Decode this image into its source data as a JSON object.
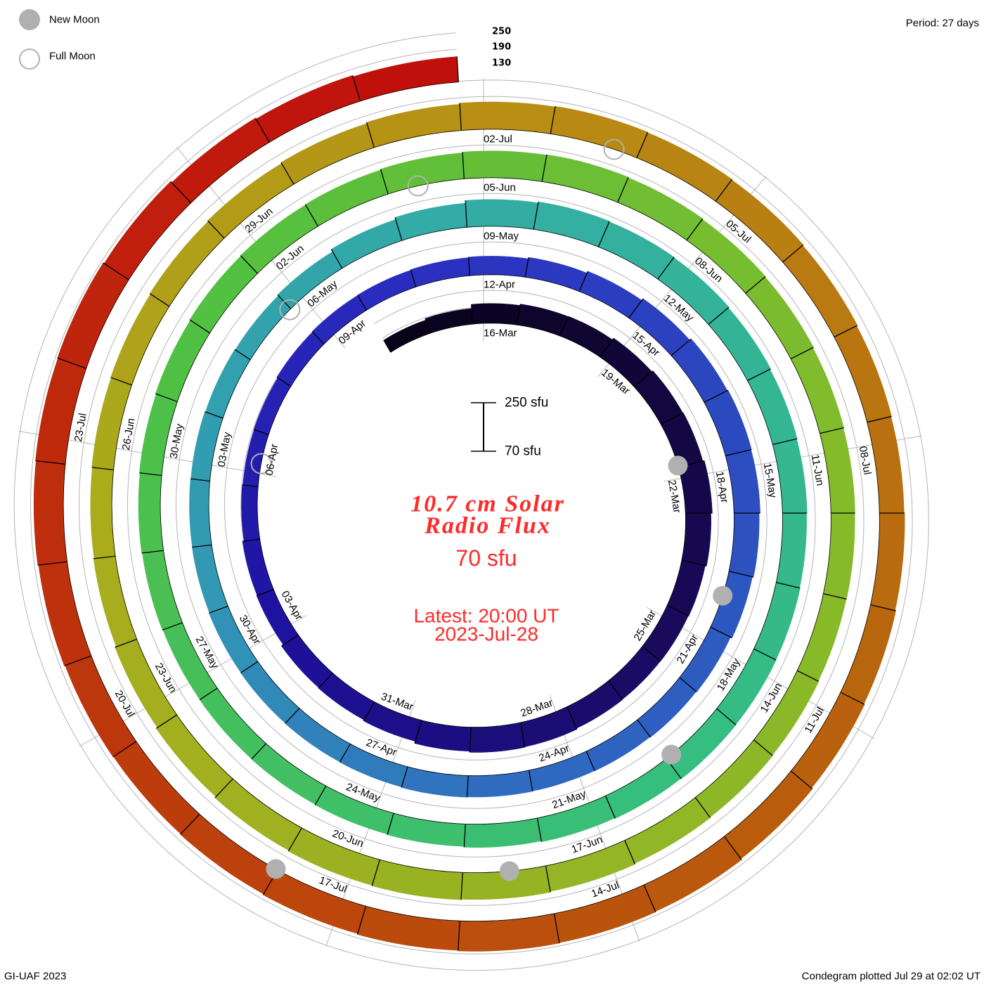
{
  "legend": {
    "new_moon": "New Moon",
    "full_moon": "Full Moon",
    "moon_color": "#b0b0b0"
  },
  "period_label": "Period: 27 days",
  "level_labels": [
    "250",
    "190",
    "130"
  ],
  "scale_bar": {
    "top": "250 sfu",
    "bottom": "70 sfu"
  },
  "title_line1": "10.7 cm Solar",
  "title_line2": "Radio Flux",
  "base_label": "70 sfu",
  "latest_line1": "Latest: 20:00 UT",
  "latest_line2": "2023-Jul-28",
  "footer_left": "GI-UAF 2023",
  "footer_right": "Condegram plotted Jul 29 at 02:02 UT",
  "chart_data": {
    "type": "condegram",
    "title": "10.7 cm Solar Radio Flux",
    "period_days": 27,
    "base_sfu": 70,
    "scale_top_sfu": 250,
    "levels_sfu": [
      130,
      190,
      250
    ],
    "first_day": "2023-03-14",
    "last_day": "2023-07-28",
    "units": "sfu",
    "daily_flux": [
      121,
      127,
      142,
      147,
      148,
      155,
      160,
      162,
      168,
      163,
      158,
      156,
      155,
      156,
      160,
      162,
      158,
      150,
      146,
      144,
      136,
      134,
      128,
      126,
      127,
      131,
      133,
      134,
      136,
      138,
      143,
      150,
      158,
      165,
      168,
      166,
      162,
      158,
      152,
      150,
      148,
      147,
      148,
      149,
      147,
      146,
      145,
      144,
      142,
      141,
      140,
      138,
      136,
      140,
      150,
      158,
      168,
      172,
      170,
      168,
      165,
      162,
      160,
      158,
      160,
      161,
      162,
      160,
      158,
      155,
      152,
      150,
      148,
      147,
      146,
      148,
      150,
      152,
      155,
      158,
      160,
      162,
      165,
      168,
      170,
      168,
      165,
      163,
      160,
      158,
      157,
      156,
      158,
      160,
      162,
      165,
      168,
      170,
      168,
      165,
      160,
      155,
      150,
      148,
      150,
      152,
      155,
      158,
      162,
      166,
      170,
      172,
      170,
      168,
      165,
      162,
      160,
      162,
      165,
      168,
      172,
      176,
      178,
      180,
      178,
      175,
      172,
      170,
      172,
      175,
      178,
      180,
      182,
      178,
      172,
      168,
      163
    ],
    "date_labels": [
      "16-Mar",
      "19-Mar",
      "22-Mar",
      "25-Mar",
      "28-Mar",
      "31-Mar",
      "03-Apr",
      "06-Apr",
      "09-Apr",
      "12-Apr",
      "15-Apr",
      "18-Apr",
      "21-Apr",
      "24-Apr",
      "27-Apr",
      "30-Apr",
      "03-May",
      "06-May",
      "09-May",
      "12-May",
      "15-May",
      "18-May",
      "21-May",
      "24-May",
      "27-May",
      "30-May",
      "02-Jun",
      "05-Jun",
      "08-Jun",
      "11-Jun",
      "14-Jun",
      "17-Jun",
      "20-Jun",
      "23-Jun",
      "26-Jun",
      "29-Jun",
      "02-Jul",
      "05-Jul",
      "08-Jul",
      "11-Jul",
      "14-Jul",
      "17-Jul",
      "20-Jul",
      "23-Jul"
    ],
    "new_moons_days_after_16mar": [
      5.72,
      35.18,
      64.66,
      94.19,
      123.77
    ],
    "full_moons_days_after_16mar": [
      21.19,
      50.73,
      80.15,
      109.48
    ],
    "color_stops": [
      {
        "day": 0,
        "color": "#08031a"
      },
      {
        "day": 11,
        "color": "#1a0a5c"
      },
      {
        "day": 20,
        "color": "#1e12a0"
      },
      {
        "day": 27,
        "color": "#2a2cc0"
      },
      {
        "day": 42,
        "color": "#2f6cc0"
      },
      {
        "day": 48,
        "color": "#3298b4"
      },
      {
        "day": 57,
        "color": "#33b0a2"
      },
      {
        "day": 67,
        "color": "#36be7c"
      },
      {
        "day": 79,
        "color": "#52c040"
      },
      {
        "day": 88,
        "color": "#80bc2c"
      },
      {
        "day": 103,
        "color": "#aaac1c"
      },
      {
        "day": 110,
        "color": "#b88e14"
      },
      {
        "day": 118,
        "color": "#b8660e"
      },
      {
        "day": 125,
        "color": "#bc460c"
      },
      {
        "day": 136,
        "color": "#c0100c"
      }
    ]
  }
}
